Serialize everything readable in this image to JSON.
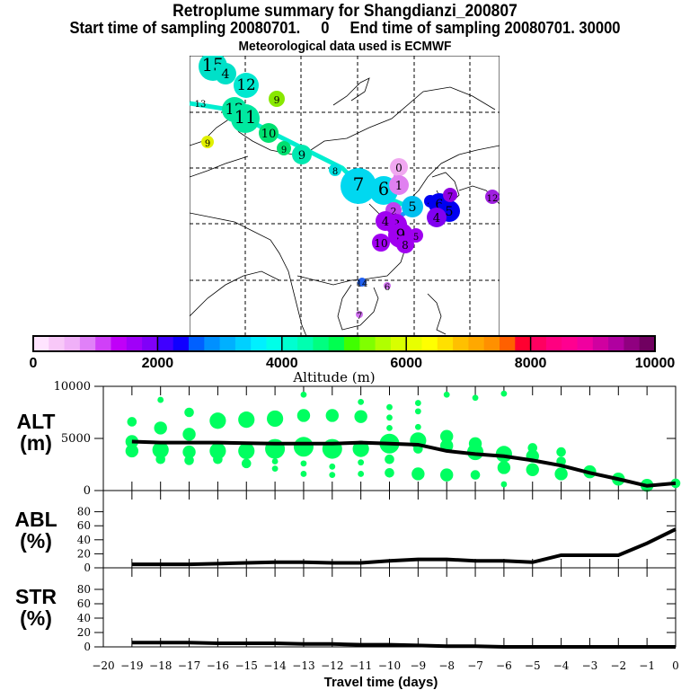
{
  "header": {
    "title": "Retroplume summary for Shangdianzi_200807",
    "subtitle": "Start time of sampling 20080701.     0     End time of sampling 20080701. 30000",
    "met_line": "Meteorological data used is ECMWF"
  },
  "map": {
    "description": "Retroplume map over East/Central Asia with cluster circles labeled by days back, colored by altitude",
    "trajectory_color_start": "#00ee99",
    "clusters": [
      {
        "label": "15",
        "color": "#00e0c8"
      },
      {
        "label": "4",
        "color": "#00e0c8"
      },
      {
        "label": "12",
        "color": "#00e8d0"
      },
      {
        "label": "9",
        "color": "#88e800"
      },
      {
        "label": "13",
        "color": "#00e8a0"
      },
      {
        "label": "12",
        "color": "#00e8a0"
      },
      {
        "label": "11",
        "color": "#00e8a0"
      },
      {
        "label": "10",
        "color": "#00e070"
      },
      {
        "label": "9",
        "color": "#00e070"
      },
      {
        "label": "9",
        "color": "#00e8b0"
      },
      {
        "label": "8",
        "color": "#00e0e0"
      },
      {
        "label": "7",
        "color": "#00d8f0"
      },
      {
        "label": "6",
        "color": "#00d8f0"
      },
      {
        "label": "0",
        "color": "#f0a8f0"
      },
      {
        "label": "1",
        "color": "#e080f0"
      },
      {
        "label": "5",
        "color": "#00c0f0"
      },
      {
        "label": "2",
        "color": "#c040f0"
      },
      {
        "label": "3",
        "color": "#a000f0"
      },
      {
        "label": "4",
        "color": "#a000f0"
      },
      {
        "label": "10",
        "color": "#a000f0"
      },
      {
        "label": "9",
        "color": "#a000f0"
      },
      {
        "label": "8",
        "color": "#a000f0"
      },
      {
        "label": "5",
        "color": "#a000f0"
      },
      {
        "label": "4",
        "color": "#0000f0"
      },
      {
        "label": "6",
        "color": "#0000f0"
      },
      {
        "label": "5",
        "color": "#0000f0"
      },
      {
        "label": "4",
        "color": "#8000f0"
      },
      {
        "label": "7",
        "color": "#9000e0"
      },
      {
        "label": "12",
        "color": "#a020e0"
      },
      {
        "label": "14",
        "color": "#2060f0"
      },
      {
        "label": "6",
        "color": "#d070f0"
      },
      {
        "label": "7",
        "color": "#d070f0"
      },
      {
        "label": "9",
        "color": "#e0f000"
      }
    ]
  },
  "colorbar": {
    "label": "Altitude (m)",
    "ticks": [
      "0",
      "2000",
      "4000",
      "6000",
      "8000",
      "10000"
    ],
    "colors": [
      "#ffe4ff",
      "#f8c8f8",
      "#f0b0f8",
      "#e080f8",
      "#d040f8",
      "#c000f8",
      "#a000f8",
      "#8000f8",
      "#4000ff",
      "#1000ff",
      "#0060ff",
      "#0090ff",
      "#00b0ff",
      "#00d0ff",
      "#00f0ff",
      "#00ffe8",
      "#00ffd0",
      "#00ffb0",
      "#00ff80",
      "#00ff50",
      "#40ff00",
      "#80ff00",
      "#b0ff00",
      "#d8ff00",
      "#e8ff00",
      "#ffff00",
      "#ffe000",
      "#ffc000",
      "#ffa800",
      "#ff9000",
      "#ff6000",
      "#ff0030",
      "#ff0060",
      "#ff0080",
      "#ff0090",
      "#f000a0",
      "#d000a0",
      "#b000a0",
      "#900080",
      "#700060"
    ]
  },
  "chart_data": [
    {
      "type": "line",
      "panel": "ALT",
      "ylabel_lines": [
        "ALT",
        "(m)"
      ],
      "ylim": [
        0,
        10000
      ],
      "yticks": [
        "0",
        "5000",
        "10000"
      ],
      "x": [
        -19,
        -18,
        -17,
        -16,
        -15,
        -14,
        -13,
        -12,
        -11,
        -10,
        -9,
        -8,
        -7,
        -6,
        -5,
        -4,
        -3,
        -2,
        -1,
        0
      ],
      "series": [
        {
          "name": "mean altitude",
          "values": [
            4700,
            4600,
            4600,
            4600,
            4550,
            4500,
            4500,
            4500,
            4600,
            4500,
            4400,
            3800,
            3500,
            3300,
            2900,
            2400,
            1700,
            1100,
            450,
            700
          ]
        }
      ],
      "scatter_color": "#00ff60",
      "scatter_points": [
        {
          "x": -19,
          "y": 6600,
          "s": 2
        },
        {
          "x": -19,
          "y": 4700,
          "s": 3
        },
        {
          "x": -19,
          "y": 3800,
          "s": 3
        },
        {
          "x": -18,
          "y": 8700,
          "s": 1
        },
        {
          "x": -18,
          "y": 6000,
          "s": 3
        },
        {
          "x": -18,
          "y": 3900,
          "s": 4
        },
        {
          "x": -18,
          "y": 3000,
          "s": 2
        },
        {
          "x": -17,
          "y": 7500,
          "s": 2
        },
        {
          "x": -17,
          "y": 5400,
          "s": 3
        },
        {
          "x": -17,
          "y": 3700,
          "s": 3
        },
        {
          "x": -17,
          "y": 2900,
          "s": 2
        },
        {
          "x": -16,
          "y": 6700,
          "s": 4
        },
        {
          "x": -16,
          "y": 3800,
          "s": 4
        },
        {
          "x": -16,
          "y": 3000,
          "s": 2
        },
        {
          "x": -15,
          "y": 6800,
          "s": 4
        },
        {
          "x": -15,
          "y": 3800,
          "s": 4
        },
        {
          "x": -15,
          "y": 2600,
          "s": 2
        },
        {
          "x": -14,
          "y": 6900,
          "s": 4
        },
        {
          "x": -14,
          "y": 4000,
          "s": 5
        },
        {
          "x": -14,
          "y": 2800,
          "s": 1
        },
        {
          "x": -14,
          "y": 2100,
          "s": 1
        },
        {
          "x": -13,
          "y": 9200,
          "s": 1
        },
        {
          "x": -13,
          "y": 7200,
          "s": 3
        },
        {
          "x": -13,
          "y": 4200,
          "s": 5
        },
        {
          "x": -13,
          "y": 2600,
          "s": 1
        },
        {
          "x": -13,
          "y": 1600,
          "s": 1
        },
        {
          "x": -12,
          "y": 7200,
          "s": 3
        },
        {
          "x": -12,
          "y": 4000,
          "s": 5
        },
        {
          "x": -12,
          "y": 2300,
          "s": 1
        },
        {
          "x": -12,
          "y": 1500,
          "s": 1
        },
        {
          "x": -11,
          "y": 8500,
          "s": 1
        },
        {
          "x": -11,
          "y": 7100,
          "s": 3
        },
        {
          "x": -11,
          "y": 4000,
          "s": 4
        },
        {
          "x": -11,
          "y": 2700,
          "s": 1
        },
        {
          "x": -11,
          "y": 1600,
          "s": 1
        },
        {
          "x": -10,
          "y": 8000,
          "s": 1
        },
        {
          "x": -10,
          "y": 7000,
          "s": 1
        },
        {
          "x": -10,
          "y": 6000,
          "s": 1
        },
        {
          "x": -10,
          "y": 4500,
          "s": 5
        },
        {
          "x": -10,
          "y": 3000,
          "s": 2
        },
        {
          "x": -10,
          "y": 1700,
          "s": 2
        },
        {
          "x": -9,
          "y": 8400,
          "s": 1
        },
        {
          "x": -9,
          "y": 7600,
          "s": 1
        },
        {
          "x": -9,
          "y": 6100,
          "s": 1
        },
        {
          "x": -9,
          "y": 4800,
          "s": 4
        },
        {
          "x": -9,
          "y": 4000,
          "s": 2
        },
        {
          "x": -9,
          "y": 1600,
          "s": 3
        },
        {
          "x": -8,
          "y": 9200,
          "s": 1
        },
        {
          "x": -8,
          "y": 5200,
          "s": 3
        },
        {
          "x": -8,
          "y": 4300,
          "s": 3
        },
        {
          "x": -8,
          "y": 1500,
          "s": 3
        },
        {
          "x": -7,
          "y": 8900,
          "s": 1
        },
        {
          "x": -7,
          "y": 4500,
          "s": 3
        },
        {
          "x": -7,
          "y": 3700,
          "s": 4
        },
        {
          "x": -7,
          "y": 1500,
          "s": 2
        },
        {
          "x": -6,
          "y": 9300,
          "s": 1
        },
        {
          "x": -6,
          "y": 3500,
          "s": 4
        },
        {
          "x": -6,
          "y": 2200,
          "s": 3
        },
        {
          "x": -6,
          "y": 600,
          "s": 1
        },
        {
          "x": -5,
          "y": 4100,
          "s": 2
        },
        {
          "x": -5,
          "y": 3300,
          "s": 3
        },
        {
          "x": -5,
          "y": 2000,
          "s": 3
        },
        {
          "x": -4,
          "y": 3700,
          "s": 2
        },
        {
          "x": -4,
          "y": 2800,
          "s": 2
        },
        {
          "x": -4,
          "y": 1600,
          "s": 3
        },
        {
          "x": -3,
          "y": 1800,
          "s": 3
        },
        {
          "x": -2,
          "y": 1100,
          "s": 3
        },
        {
          "x": -1,
          "y": 500,
          "s": 3
        },
        {
          "x": 0,
          "y": 700,
          "s": 2
        }
      ]
    },
    {
      "type": "line",
      "panel": "ABL",
      "ylabel_lines": [
        "ABL",
        "(%)"
      ],
      "ylim": [
        0,
        100
      ],
      "yticks": [
        "0",
        "20",
        "40",
        "60",
        "80"
      ],
      "x": [
        -19,
        -18,
        -17,
        -16,
        -15,
        -14,
        -13,
        -12,
        -11,
        -10,
        -9,
        -8,
        -7,
        -6,
        -5,
        -4,
        -3,
        -2,
        -1,
        0
      ],
      "series": [
        {
          "name": "ABL fraction",
          "values": [
            5,
            5,
            5,
            6,
            7,
            8,
            8,
            7,
            7,
            10,
            12,
            12,
            10,
            10,
            8,
            18,
            18,
            18,
            35,
            55
          ]
        }
      ]
    },
    {
      "type": "line",
      "panel": "STR",
      "ylabel_lines": [
        "STR",
        "(%)"
      ],
      "ylim": [
        0,
        100
      ],
      "yticks": [
        "0",
        "20",
        "40",
        "60",
        "80"
      ],
      "x": [
        -19,
        -18,
        -17,
        -16,
        -15,
        -14,
        -13,
        -12,
        -11,
        -10,
        -9,
        -8,
        -7,
        -6,
        -5,
        -4,
        -3,
        -2,
        -1,
        0
      ],
      "series": [
        {
          "name": "stratosphere fraction",
          "values": [
            6,
            6,
            6,
            5,
            5,
            5,
            4,
            4,
            3,
            3,
            2,
            1,
            1,
            0,
            0,
            0,
            0,
            0,
            0,
            0
          ]
        }
      ],
      "xlabel": "Travel time (days)",
      "xticks": [
        "-20",
        "-19",
        "-18",
        "-17",
        "-16",
        "-15",
        "-14",
        "-13",
        "-12",
        "-11",
        "-10",
        "-9",
        "-8",
        "-7",
        "-6",
        "-5",
        "-4",
        "-3",
        "-2",
        "-1",
        "0"
      ]
    }
  ]
}
